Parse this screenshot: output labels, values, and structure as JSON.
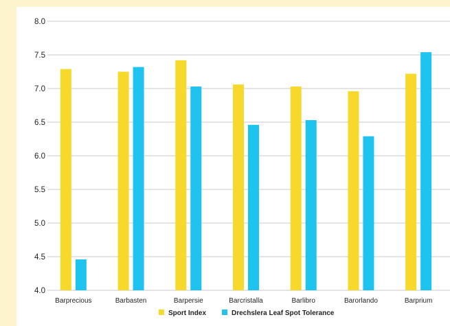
{
  "chart_data": {
    "type": "bar",
    "categories": [
      "Barprecious",
      "Barbasten",
      "Barpersie",
      "Barcristalla",
      "Barlibro",
      "Barorlando",
      "Barprium"
    ],
    "series": [
      {
        "name": "Sport Index",
        "color": "#f7d92c",
        "values": [
          7.29,
          7.25,
          7.42,
          7.06,
          7.03,
          6.96,
          7.22
        ]
      },
      {
        "name": "Drechslera Leaf Spot Tolerance",
        "color": "#1ec3f0",
        "values": [
          4.46,
          7.32,
          7.03,
          6.46,
          6.53,
          6.29,
          7.54
        ]
      }
    ],
    "ylim": [
      4.0,
      8.0
    ],
    "yticks": [
      "4.0",
      "4.5",
      "5.0",
      "5.5",
      "6.0",
      "6.5",
      "7.0",
      "7.5",
      "8.0"
    ],
    "grid": true,
    "legend_position": "bottom-center",
    "gridline_color": "#c8c8c8"
  }
}
